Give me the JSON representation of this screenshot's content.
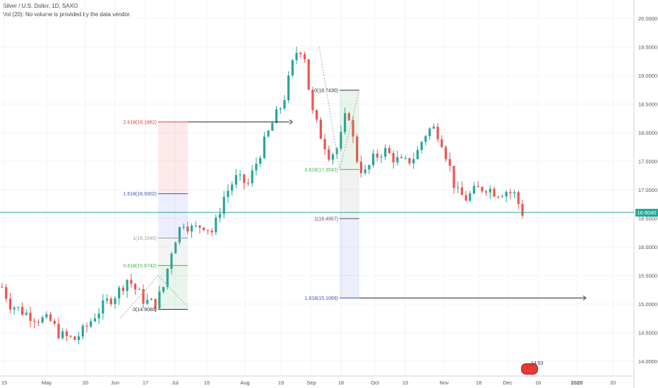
{
  "header": {
    "title": "Silver / U.S. Dollar, 1D, SAXO",
    "volume_note": "Vol (20): No volume is provided by the data vendor."
  },
  "price_axis": {
    "ticks": [
      "20.0000",
      "19.5000",
      "19.0000",
      "18.5000",
      "18.0000",
      "17.5000",
      "17.0000",
      "16.5000",
      "16.0000",
      "15.5000",
      "15.0000",
      "14.5000",
      "14.0000"
    ],
    "current_price": "16.6040"
  },
  "time_axis": {
    "labels": [
      "15",
      "May",
      "20",
      "Jun",
      "17",
      "Jul",
      "15",
      "Aug",
      "19",
      "Sep",
      "16",
      "Oct",
      "15",
      "Nov",
      "18",
      "Dec",
      "16",
      "2020",
      "20"
    ]
  },
  "badge": {
    "time": "14:53"
  },
  "colors": {
    "up": "#26a69a",
    "down": "#ef5350",
    "price_line": "#26a69a",
    "fib_red": "#e53935",
    "fib_green": "#4caf50"
  },
  "chart_data": {
    "type": "candlestick",
    "title": "Silver / U.S. Dollar, 1D, SAXO",
    "ylim": [
      13.85,
      20.25
    ],
    "grid": true,
    "current_price": 16.604,
    "candles": [],
    "fib_left": {
      "levels": [
        {
          "label": "2.618(18.1862)",
          "value": 18.1862
        },
        {
          "label": "1.618(16.9302)",
          "value": 16.9302
        },
        {
          "label": "1(16.1540)",
          "value": 16.154
        },
        {
          "label": "0.618(15.6742)",
          "value": 15.6742
        },
        {
          "label": "0(14.9080)",
          "value": 14.908
        }
      ]
    },
    "fib_right": {
      "levels": [
        {
          "label": "0(18.7430)",
          "value": 18.743
        },
        {
          "label": "0.618(17.3542)",
          "value": 17.3542
        },
        {
          "label": "1(16.4957)",
          "value": 16.4957
        },
        {
          "label": "1.618(15.1069)",
          "value": 15.1069
        }
      ]
    }
  }
}
